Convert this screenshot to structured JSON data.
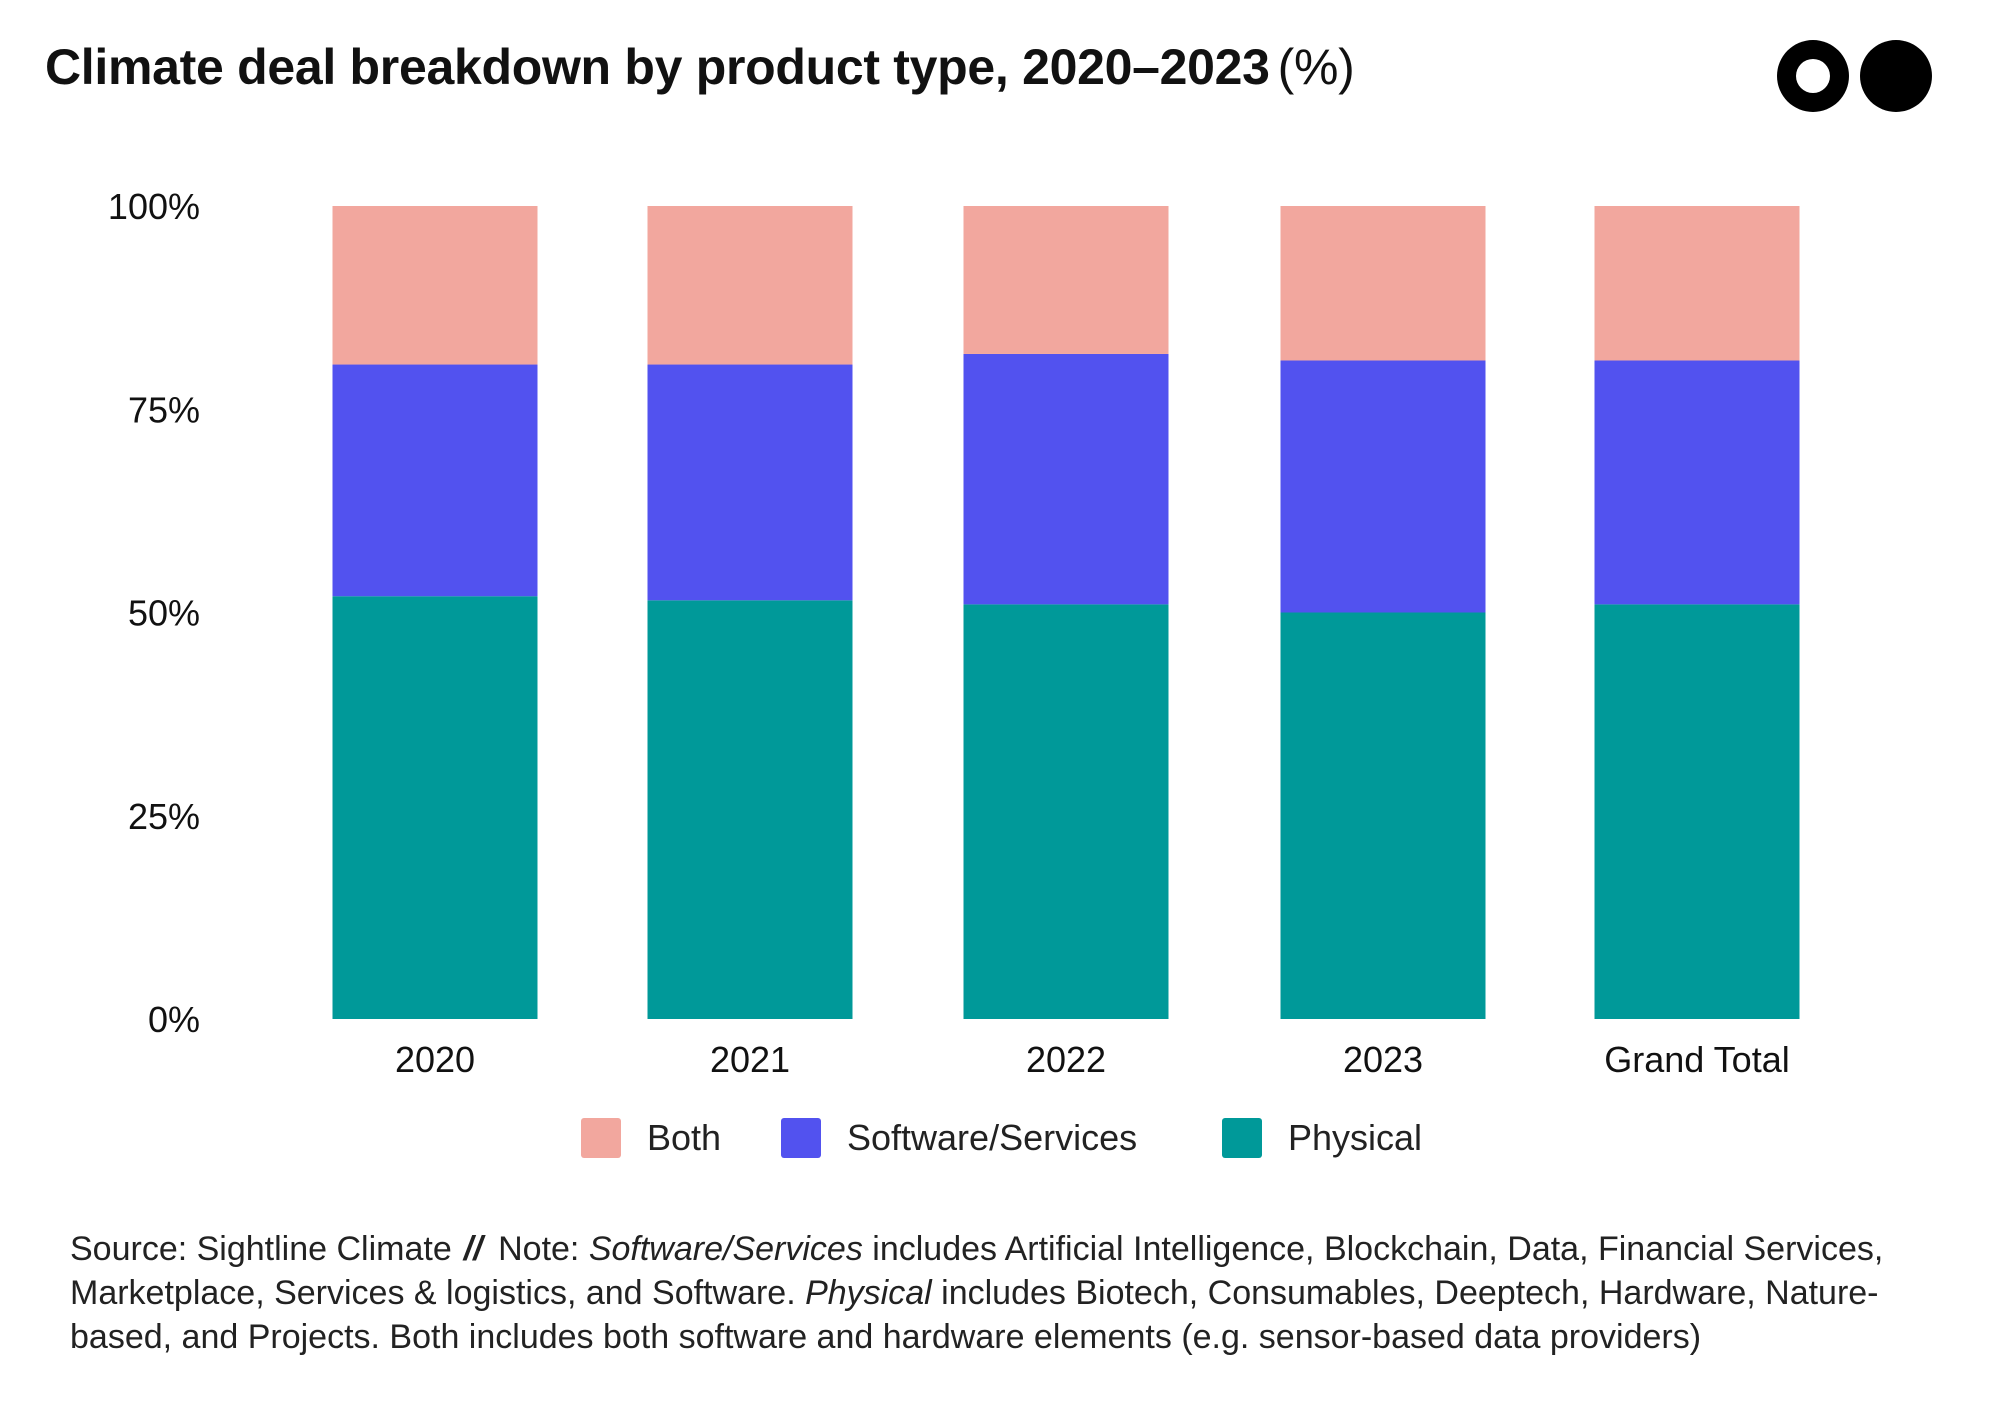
{
  "header": {
    "title": "Climate deal breakdown by product type, 2020–2023",
    "unit": "(%)"
  },
  "logo": {
    "name": "brand-logo"
  },
  "chart_data": {
    "type": "bar",
    "stacked": true,
    "percent": true,
    "categories": [
      "2020",
      "2021",
      "2022",
      "2023",
      "Grand Total"
    ],
    "series": [
      {
        "name": "Physical",
        "color": "#009999",
        "values": [
          52,
          51.5,
          51,
          50,
          51
        ]
      },
      {
        "name": "Software/Services",
        "color": "#5252EF",
        "values": [
          28.5,
          29,
          30.8,
          31,
          30
        ]
      },
      {
        "name": "Both",
        "color": "#F2A79E",
        "values": [
          19.5,
          19.5,
          18.2,
          19,
          19
        ]
      }
    ],
    "legend_order": [
      "Both",
      "Software/Services",
      "Physical"
    ],
    "ylim": [
      0,
      100
    ],
    "yticks": [
      "0%",
      "25%",
      "50%",
      "75%",
      "100%"
    ],
    "ytick_values": [
      0,
      25,
      50,
      75,
      100
    ],
    "xlabel": "",
    "ylabel": "",
    "grid": false,
    "legend_position": "bottom"
  },
  "footer": {
    "source": "Source: Sightline Climate",
    "separator": "//",
    "note_label": "Note:",
    "term1": "Software/Services",
    "text1": " includes Artificial Intelligence, Blockchain, Data, Financial Services, Marketplace, Services & logistics, and Software. ",
    "term2": "Physical",
    "text2": " includes Biotech, Consumables, Deeptech, Hardware, Nature-based, and Projects. Both includes both software and hardware elements (e.g. sensor-based data providers)"
  }
}
